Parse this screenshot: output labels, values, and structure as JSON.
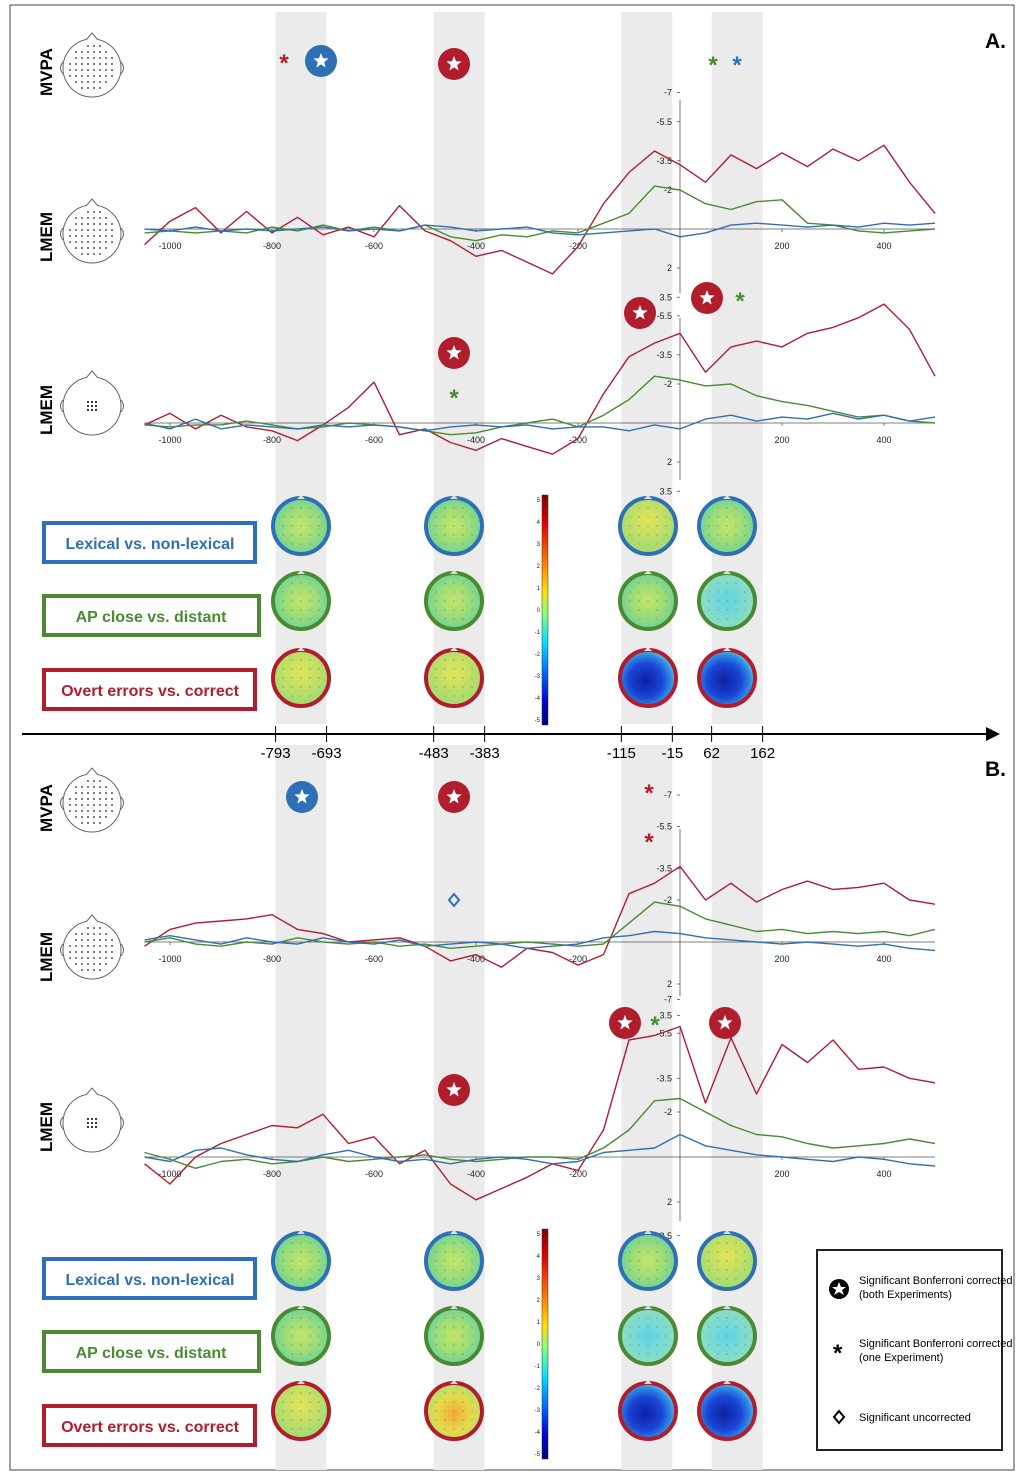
{
  "panel_labels": [
    "A.",
    "B."
  ],
  "row_labels": {
    "mvpa": "MVPA",
    "lmem": "LMEM"
  },
  "colors": {
    "lexical": "#2f6fb5",
    "ap": "#4a8a32",
    "errors": "#b01e2e",
    "shade": "#ebebeb"
  },
  "contrasts": [
    {
      "key": "lexical",
      "label": "Lexical vs. non-lexical"
    },
    {
      "key": "ap",
      "label": "AP close vs. distant"
    },
    {
      "key": "errors",
      "label": "Overt errors vs. correct"
    }
  ],
  "time_axis": {
    "boundaries": [
      "-793",
      "-693",
      "-483",
      "-383",
      "-115",
      "-15",
      "62",
      "162"
    ]
  },
  "colorbar": {
    "ticks": [
      "5",
      "4",
      "3",
      "2",
      "1",
      "0",
      "-1",
      "-2",
      "-3",
      "-4",
      "-5"
    ]
  },
  "legend": {
    "star": "Significant Bonferroni corrected (both Experiments)",
    "asterisk": "Significant Bonferroni corrected (one Experiment)",
    "diamond": "Significant uncorrected"
  },
  "chart_data": [
    {
      "type": "line",
      "panel": "A",
      "sensors": "all electrodes",
      "x_ticks": [
        "-1000",
        "-800",
        "-600",
        "-400",
        "-200",
        "200",
        "400"
      ],
      "y_ticks": [
        "-7",
        "-5.5",
        "-3.5",
        "-2",
        "2",
        "3.5"
      ],
      "xlim": [
        -1050,
        500
      ],
      "series": [
        {
          "key": "errors",
          "x": [
            -1050,
            -1000,
            -950,
            -900,
            -850,
            -800,
            -750,
            -700,
            -650,
            -600,
            -550,
            -500,
            -450,
            -400,
            -350,
            -300,
            -250,
            -200,
            -150,
            -100,
            -50,
            0,
            50,
            100,
            150,
            200,
            250,
            300,
            350,
            400,
            450,
            500
          ],
          "values": [
            0.8,
            -0.4,
            -1.1,
            0.2,
            -0.9,
            0.2,
            -0.6,
            0.3,
            -0.1,
            0.4,
            -1.2,
            0.1,
            0.6,
            1.4,
            1.1,
            1.7,
            2.3,
            0.9,
            -1.3,
            -2.9,
            -4.0,
            -3.3,
            -2.4,
            -3.8,
            -3.1,
            -3.9,
            -3.2,
            -4.1,
            -3.5,
            -4.3,
            -2.4,
            -0.8
          ]
        },
        {
          "key": "ap",
          "x": [
            -1050,
            -1000,
            -950,
            -900,
            -850,
            -800,
            -750,
            -700,
            -650,
            -600,
            -550,
            -500,
            -450,
            -400,
            -350,
            -300,
            -250,
            -200,
            -150,
            -100,
            -50,
            0,
            50,
            100,
            150,
            200,
            250,
            300,
            350,
            400,
            450,
            500
          ],
          "values": [
            0.2,
            0.1,
            0.2,
            0.1,
            0.2,
            -0.1,
            0.1,
            -0.2,
            0.1,
            -0.1,
            0.1,
            -0.2,
            0.4,
            0.6,
            0.3,
            0.4,
            0.1,
            0.2,
            -0.3,
            -0.8,
            -2.2,
            -2.0,
            -1.3,
            -1.0,
            -1.4,
            -1.5,
            -0.3,
            -0.2,
            0.1,
            0.2,
            0.1,
            0.0
          ]
        },
        {
          "key": "lexical",
          "x": [
            -1050,
            -1000,
            -950,
            -900,
            -850,
            -800,
            -750,
            -700,
            -650,
            -600,
            -550,
            -500,
            -450,
            -400,
            -350,
            -300,
            -250,
            -200,
            -150,
            -100,
            -50,
            0,
            50,
            100,
            150,
            200,
            250,
            300,
            350,
            400,
            450,
            500
          ],
          "values": [
            0.0,
            0.1,
            -0.1,
            0.1,
            0.0,
            0.1,
            0.0,
            -0.1,
            0.1,
            0.0,
            0.1,
            -0.2,
            -0.1,
            0.1,
            0.0,
            -0.1,
            0.2,
            0.3,
            0.2,
            0.1,
            0.0,
            0.4,
            0.2,
            -0.2,
            -0.3,
            -0.2,
            -0.1,
            -0.2,
            -0.1,
            -0.3,
            -0.2,
            -0.3
          ]
        }
      ]
    },
    {
      "type": "line",
      "panel": "A",
      "sensors": "central cluster",
      "x_ticks": [
        "-1000",
        "-800",
        "-600",
        "-400",
        "-200",
        "200",
        "400"
      ],
      "y_ticks": [
        "-5.5",
        "-3.5",
        "-2",
        "2",
        "3.5"
      ],
      "xlim": [
        -1050,
        500
      ],
      "series": [
        {
          "key": "errors",
          "x": [
            -1050,
            -1000,
            -950,
            -900,
            -850,
            -800,
            -750,
            -700,
            -650,
            -600,
            -550,
            -500,
            -450,
            -400,
            -350,
            -300,
            -250,
            -200,
            -150,
            -100,
            -50,
            0,
            50,
            100,
            150,
            200,
            250,
            300,
            350,
            400,
            450,
            500
          ],
          "values": [
            0.1,
            -0.5,
            0.3,
            -0.4,
            0.2,
            0.4,
            0.9,
            0.1,
            -0.8,
            -2.1,
            0.6,
            0.3,
            1.0,
            1.4,
            0.8,
            1.2,
            1.6,
            0.8,
            -1.5,
            -3.4,
            -4.1,
            -4.6,
            -2.6,
            -3.9,
            -4.2,
            -3.9,
            -4.6,
            -4.9,
            -5.4,
            -6.1,
            -4.8,
            -2.4
          ]
        },
        {
          "key": "ap",
          "x": [
            -1050,
            -1000,
            -950,
            -900,
            -850,
            -800,
            -750,
            -700,
            -650,
            -600,
            -550,
            -500,
            -450,
            -400,
            -350,
            -300,
            -250,
            -200,
            -150,
            -100,
            -50,
            0,
            50,
            100,
            150,
            200,
            250,
            300,
            350,
            400,
            450,
            500
          ],
          "values": [
            0.1,
            0.2,
            0.1,
            0.1,
            -0.1,
            0.1,
            0.3,
            0.2,
            0.0,
            0.1,
            0.2,
            0.4,
            0.6,
            0.5,
            0.2,
            0.0,
            -0.2,
            0.2,
            -0.4,
            -1.2,
            -2.4,
            -2.2,
            -1.9,
            -2.0,
            -1.4,
            -1.1,
            -0.9,
            -0.6,
            -0.3,
            -0.4,
            -0.1,
            0.0
          ]
        },
        {
          "key": "lexical",
          "x": [
            -1050,
            -1000,
            -950,
            -900,
            -850,
            -800,
            -750,
            -700,
            -650,
            -600,
            -550,
            -500,
            -450,
            -400,
            -350,
            -300,
            -250,
            -200,
            -150,
            -100,
            -50,
            0,
            50,
            100,
            150,
            200,
            250,
            300,
            350,
            400,
            450,
            500
          ],
          "values": [
            0.0,
            0.3,
            -0.2,
            0.3,
            0.1,
            0.2,
            0.3,
            0.1,
            0.2,
            0.1,
            0.2,
            0.4,
            0.2,
            0.1,
            0.2,
            0.1,
            0.3,
            0.2,
            0.2,
            0.4,
            0.1,
            0.3,
            -0.2,
            -0.4,
            -0.1,
            -0.3,
            -0.2,
            -0.5,
            -0.2,
            -0.4,
            -0.1,
            -0.3
          ]
        }
      ]
    },
    {
      "type": "line",
      "panel": "B",
      "sensors": "all electrodes",
      "x_ticks": [
        "-1000",
        "-800",
        "-600",
        "-400",
        "-200",
        "200",
        "400"
      ],
      "y_ticks": [
        "-7",
        "-5.5",
        "-3.5",
        "-2",
        "2",
        "3.5"
      ],
      "xlim": [
        -1050,
        500
      ],
      "series": [
        {
          "key": "errors",
          "x": [
            -1050,
            -1000,
            -950,
            -900,
            -850,
            -800,
            -750,
            -700,
            -650,
            -600,
            -550,
            -500,
            -450,
            -400,
            -350,
            -300,
            -250,
            -200,
            -150,
            -100,
            -50,
            0,
            50,
            100,
            150,
            200,
            250,
            300,
            350,
            400,
            450,
            500
          ],
          "values": [
            0.2,
            -0.6,
            -0.9,
            -1.0,
            -1.1,
            -1.3,
            -0.6,
            -0.4,
            0.0,
            -0.1,
            -0.2,
            0.2,
            0.9,
            0.6,
            1.2,
            0.3,
            0.5,
            1.1,
            0.6,
            -2.3,
            -2.8,
            -3.6,
            -2.0,
            -2.8,
            -1.9,
            -2.5,
            -2.9,
            -2.5,
            -2.6,
            -2.8,
            -2.0,
            -1.8
          ]
        },
        {
          "key": "ap",
          "x": [
            -1050,
            -1000,
            -950,
            -900,
            -850,
            -800,
            -750,
            -700,
            -650,
            -600,
            -550,
            -500,
            -450,
            -400,
            -350,
            -300,
            -250,
            -200,
            -150,
            -100,
            -50,
            0,
            50,
            100,
            150,
            200,
            250,
            300,
            350,
            400,
            450,
            500
          ],
          "values": [
            0.0,
            -0.2,
            0.1,
            0.2,
            0.0,
            0.1,
            -0.2,
            0.0,
            0.1,
            0.0,
            0.2,
            0.1,
            0.3,
            0.2,
            0.1,
            0.0,
            0.1,
            0.2,
            0.1,
            -0.9,
            -1.9,
            -1.7,
            -1.1,
            -0.8,
            -0.5,
            -0.6,
            -0.4,
            -0.5,
            -0.4,
            -0.5,
            -0.3,
            -0.6
          ]
        },
        {
          "key": "lexical",
          "x": [
            -1050,
            -1000,
            -950,
            -900,
            -850,
            -800,
            -750,
            -700,
            -650,
            -600,
            -550,
            -500,
            -450,
            -400,
            -350,
            -300,
            -250,
            -200,
            -150,
            -100,
            -50,
            0,
            50,
            100,
            150,
            200,
            250,
            300,
            350,
            400,
            450,
            500
          ],
          "values": [
            -0.1,
            -0.3,
            -0.1,
            0.1,
            -0.2,
            0.0,
            0.1,
            -0.2,
            0.0,
            0.1,
            -0.1,
            0.2,
            0.1,
            0.0,
            0.1,
            0.3,
            0.2,
            0.1,
            -0.2,
            -0.3,
            -0.5,
            -0.4,
            -0.2,
            -0.1,
            0.0,
            0.1,
            0.0,
            0.1,
            0.2,
            0.1,
            0.3,
            0.4
          ]
        }
      ]
    },
    {
      "type": "line",
      "panel": "B",
      "sensors": "central cluster",
      "x_ticks": [
        "-1000",
        "-800",
        "-600",
        "-400",
        "-200",
        "200",
        "400"
      ],
      "y_ticks": [
        "-7",
        "-5.5",
        "-3.5",
        "-2",
        "2",
        "3.5"
      ],
      "xlim": [
        -1050,
        500
      ],
      "series": [
        {
          "key": "errors",
          "x": [
            -1050,
            -1000,
            -950,
            -900,
            -850,
            -800,
            -750,
            -700,
            -650,
            -600,
            -550,
            -500,
            -450,
            -400,
            -350,
            -300,
            -250,
            -200,
            -150,
            -100,
            -50,
            0,
            50,
            100,
            150,
            200,
            250,
            300,
            350,
            400,
            450,
            500
          ],
          "values": [
            0.3,
            1.2,
            0.0,
            -0.6,
            -1.0,
            -1.4,
            -1.3,
            -1.9,
            -0.6,
            -0.9,
            0.3,
            -0.3,
            1.2,
            1.9,
            1.4,
            0.9,
            0.3,
            0.6,
            -1.2,
            -5.2,
            -5.4,
            -5.8,
            -2.4,
            -5.3,
            -2.8,
            -5.0,
            -4.2,
            -5.2,
            -3.9,
            -4.0,
            -3.5,
            -3.3
          ]
        },
        {
          "key": "ap",
          "x": [
            -1050,
            -1000,
            -950,
            -900,
            -850,
            -800,
            -750,
            -700,
            -650,
            -600,
            -550,
            -500,
            -450,
            -400,
            -350,
            -300,
            -250,
            -200,
            -150,
            -100,
            -50,
            0,
            50,
            100,
            150,
            200,
            250,
            300,
            350,
            400,
            450,
            500
          ],
          "values": [
            -0.2,
            0.1,
            0.5,
            0.2,
            0.1,
            0.3,
            0.2,
            0.0,
            0.2,
            0.1,
            0.0,
            -0.1,
            0.1,
            0.2,
            0.1,
            0.0,
            0.0,
            0.1,
            -0.4,
            -1.2,
            -2.5,
            -2.6,
            -2.0,
            -1.4,
            -1.0,
            -0.9,
            -0.6,
            -0.4,
            -0.5,
            -0.6,
            -0.8,
            -0.6
          ]
        },
        {
          "key": "lexical",
          "x": [
            -1050,
            -1000,
            -950,
            -900,
            -850,
            -800,
            -750,
            -700,
            -650,
            -600,
            -550,
            -500,
            -450,
            -400,
            -350,
            -300,
            -250,
            -200,
            -150,
            -100,
            -50,
            0,
            50,
            100,
            150,
            200,
            250,
            300,
            350,
            400,
            450,
            500
          ],
          "values": [
            0.0,
            0.2,
            -0.3,
            -0.4,
            -0.1,
            0.1,
            0.2,
            -0.1,
            -0.3,
            0.0,
            0.2,
            0.1,
            0.3,
            0.1,
            0.0,
            0.1,
            0.3,
            0.2,
            -0.2,
            -0.3,
            -0.4,
            -1.0,
            -0.5,
            -0.3,
            -0.1,
            0.0,
            0.1,
            0.2,
            0.0,
            0.1,
            0.3,
            0.4
          ]
        }
      ]
    }
  ]
}
